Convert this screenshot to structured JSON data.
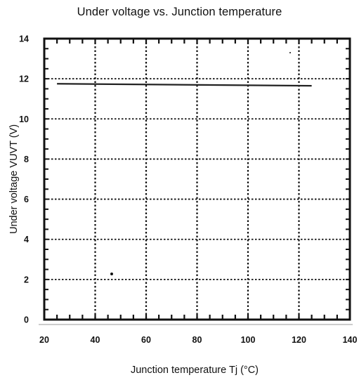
{
  "chart_data": {
    "type": "line",
    "title": "Under voltage vs. Junction temperature",
    "xlabel": "Junction temperature  Tj (°C)",
    "ylabel": "Under voltage  VUVT (V)",
    "xlim": [
      20,
      140
    ],
    "ylim": [
      0,
      14
    ],
    "xticks": [
      20,
      40,
      60,
      80,
      100,
      120,
      140
    ],
    "yticks": [
      0,
      2,
      4,
      6,
      8,
      10,
      12,
      14
    ],
    "grid": true,
    "series": [
      {
        "x": [
          25,
          125
        ],
        "y": [
          11.75,
          11.65
        ]
      }
    ],
    "colors": {
      "line": "#222222",
      "grid": "#111111",
      "frame": "#111111"
    }
  }
}
